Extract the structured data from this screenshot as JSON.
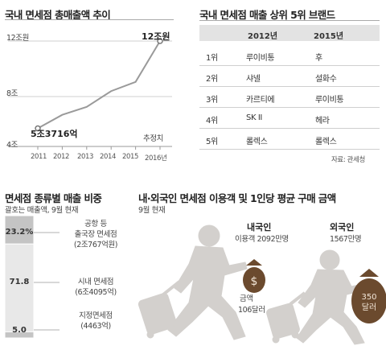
{
  "chart_data": [
    {
      "type": "line",
      "title": "국내 면세점 총매출액 추이",
      "y_tick_labels": [
        "12조원",
        "8조",
        "4조"
      ],
      "ylim": [
        4,
        12
      ],
      "yticks": [
        4,
        8,
        12
      ],
      "x": [
        "2011",
        "2012",
        "2013",
        "2014",
        "2015",
        "2016년"
      ],
      "values": [
        5.3716,
        6.4,
        7.0,
        8.2,
        8.9,
        12.0
      ],
      "start_label": "5조3716억",
      "end_label": "12조원",
      "estimate_note": "추정치",
      "color": "#9a9a9a"
    },
    {
      "type": "table",
      "title": "국내 면세점 매출 상위 5위 브랜드",
      "columns": [
        "2012년",
        "2015년"
      ],
      "rows": [
        {
          "rank": "1위",
          "y2012": "루이비통",
          "y2015": "후"
        },
        {
          "rank": "2위",
          "y2012": "샤넬",
          "y2015": "설화수"
        },
        {
          "rank": "3위",
          "y2012": "카르티에",
          "y2015": "루이비통"
        },
        {
          "rank": "4위",
          "y2012": "SK II",
          "y2015": "헤라"
        },
        {
          "rank": "5위",
          "y2012": "롤렉스",
          "y2015": "롤렉스"
        }
      ],
      "source": "자료: 관세청"
    },
    {
      "type": "bar",
      "title": "면세점 종류별 매출 비중",
      "subtitle": "괄호는 매출액, 9월 현재",
      "stacked": true,
      "categories": [
        "공항 등 출국장 면세점",
        "시내 면세점",
        "지정면세점"
      ],
      "values": [
        23.2,
        71.8,
        5.0
      ],
      "value_labels": [
        "23.2%",
        "71.8",
        "5.0"
      ],
      "label_lines": [
        [
          "공항 등",
          "출국장 면세점",
          "(2조767억원)"
        ],
        [
          "시내 면세점",
          "(6조4095억)"
        ],
        [
          "지정면세점",
          "(4463억)"
        ]
      ],
      "colors": [
        "#c4c4c4",
        "#e8e8e8",
        "#c4c4c4"
      ]
    },
    {
      "type": "other",
      "title": "내·외국인 면세점 이용객 및 1인당 평균 구매 금액",
      "subtitle": "9월 현재",
      "groups": [
        {
          "name": "내국인",
          "visitors_label": "이용객 2092만명",
          "spend_label": "금액",
          "spend_value": "106달러",
          "spend_usd": 106
        },
        {
          "name": "외국인",
          "visitors_label": "1567만명",
          "spend_value_line1": "350",
          "spend_value_line2": "달러",
          "spend_usd": 350
        }
      ],
      "figure_color": "#d3d0cd",
      "bag_color": "#6b4a2e"
    }
  ]
}
